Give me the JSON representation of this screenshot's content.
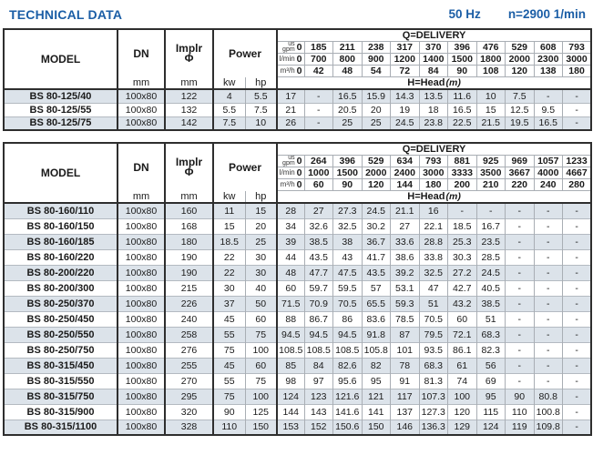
{
  "page": {
    "title": "TECHNICAL DATA",
    "frequency": "50 Hz",
    "speed": "n=2900 1/min"
  },
  "header_labels": {
    "model": "MODEL",
    "dn": "DN",
    "implr_line1": "Implr",
    "implr_line2": "Φ",
    "power": "Power",
    "mm": "mm",
    "kw": "kw",
    "hp": "hp",
    "q_delivery": "Q=DELIVERY",
    "us_gpm_line1": "us",
    "us_gpm_line2": "gpm",
    "l_min": "l/min",
    "m3_h": "m³/h",
    "zero": "0",
    "h_head": "H=Head",
    "h_head_unit": "(m)"
  },
  "tables": [
    {
      "flows": {
        "us_gpm": [
          "185",
          "211",
          "238",
          "317",
          "370",
          "396",
          "476",
          "529",
          "608",
          "793"
        ],
        "l_min": [
          "700",
          "800",
          "900",
          "1200",
          "1400",
          "1500",
          "1800",
          "2000",
          "2300",
          "3000"
        ],
        "m3_h": [
          "42",
          "48",
          "54",
          "72",
          "84",
          "90",
          "108",
          "120",
          "138",
          "180"
        ]
      },
      "rows": [
        {
          "model": "BS 80-125/40",
          "dn": "100x80",
          "implr": "122",
          "kw": "4",
          "hp": "5.5",
          "head": [
            "17",
            "-",
            "16.5",
            "15.9",
            "14.3",
            "13.5",
            "11.6",
            "10",
            "7.5",
            "-",
            "-"
          ]
        },
        {
          "model": "BS 80-125/55",
          "dn": "100x80",
          "implr": "132",
          "kw": "5.5",
          "hp": "7.5",
          "head": [
            "21",
            "-",
            "20.5",
            "20",
            "19",
            "18",
            "16.5",
            "15",
            "12.5",
            "9.5",
            "-"
          ]
        },
        {
          "model": "BS 80-125/75",
          "dn": "100x80",
          "implr": "142",
          "kw": "7.5",
          "hp": "10",
          "head": [
            "26",
            "-",
            "25",
            "25",
            "24.5",
            "23.8",
            "22.5",
            "21.5",
            "19.5",
            "16.5",
            "-"
          ]
        }
      ]
    },
    {
      "flows": {
        "us_gpm": [
          "264",
          "396",
          "529",
          "634",
          "793",
          "881",
          "925",
          "969",
          "1057",
          "1233"
        ],
        "l_min": [
          "1000",
          "1500",
          "2000",
          "2400",
          "3000",
          "3333",
          "3500",
          "3667",
          "4000",
          "4667"
        ],
        "m3_h": [
          "60",
          "90",
          "120",
          "144",
          "180",
          "200",
          "210",
          "220",
          "240",
          "280"
        ]
      },
      "rows": [
        {
          "model": "BS 80-160/110",
          "dn": "100x80",
          "implr": "160",
          "kw": "11",
          "hp": "15",
          "head": [
            "28",
            "27",
            "27.3",
            "24.5",
            "21.1",
            "16",
            "-",
            "-",
            "-",
            "-",
            "-"
          ]
        },
        {
          "model": "BS 80-160/150",
          "dn": "100x80",
          "implr": "168",
          "kw": "15",
          "hp": "20",
          "head": [
            "34",
            "32.6",
            "32.5",
            "30.2",
            "27",
            "22.1",
            "18.5",
            "16.7",
            "-",
            "-",
            "-"
          ]
        },
        {
          "model": "BS 80-160/185",
          "dn": "100x80",
          "implr": "180",
          "kw": "18.5",
          "hp": "25",
          "head": [
            "39",
            "38.5",
            "38",
            "36.7",
            "33.6",
            "28.8",
            "25.3",
            "23.5",
            "-",
            "-",
            "-"
          ]
        },
        {
          "model": "BS 80-160/220",
          "dn": "100x80",
          "implr": "190",
          "kw": "22",
          "hp": "30",
          "head": [
            "44",
            "43.5",
            "43",
            "41.7",
            "38.6",
            "33.8",
            "30.3",
            "28.5",
            "-",
            "-",
            "-"
          ]
        },
        {
          "model": "BS 80-200/220",
          "dn": "100x80",
          "implr": "190",
          "kw": "22",
          "hp": "30",
          "head": [
            "48",
            "47.7",
            "47.5",
            "43.5",
            "39.2",
            "32.5",
            "27.2",
            "24.5",
            "-",
            "-",
            "-"
          ]
        },
        {
          "model": "BS 80-200/300",
          "dn": "100x80",
          "implr": "215",
          "kw": "30",
          "hp": "40",
          "head": [
            "60",
            "59.7",
            "59.5",
            "57",
            "53.1",
            "47",
            "42.7",
            "40.5",
            "-",
            "-",
            "-"
          ]
        },
        {
          "model": "BS 80-250/370",
          "dn": "100x80",
          "implr": "226",
          "kw": "37",
          "hp": "50",
          "head": [
            "71.5",
            "70.9",
            "70.5",
            "65.5",
            "59.3",
            "51",
            "43.2",
            "38.5",
            "-",
            "-",
            "-"
          ]
        },
        {
          "model": "BS 80-250/450",
          "dn": "100x80",
          "implr": "240",
          "kw": "45",
          "hp": "60",
          "head": [
            "88",
            "86.7",
            "86",
            "83.6",
            "78.5",
            "70.5",
            "60",
            "51",
            "-",
            "-",
            "-"
          ]
        },
        {
          "model": "BS 80-250/550",
          "dn": "100x80",
          "implr": "258",
          "kw": "55",
          "hp": "75",
          "head": [
            "94.5",
            "94.5",
            "94.5",
            "91.8",
            "87",
            "79.5",
            "72.1",
            "68.3",
            "-",
            "-",
            "-"
          ]
        },
        {
          "model": "BS 80-250/750",
          "dn": "100x80",
          "implr": "276",
          "kw": "75",
          "hp": "100",
          "head": [
            "108.5",
            "108.5",
            "108.5",
            "105.8",
            "101",
            "93.5",
            "86.1",
            "82.3",
            "-",
            "-",
            "-"
          ]
        },
        {
          "model": "BS 80-315/450",
          "dn": "100x80",
          "implr": "255",
          "kw": "45",
          "hp": "60",
          "head": [
            "85",
            "84",
            "82.6",
            "82",
            "78",
            "68.3",
            "61",
            "56",
            "-",
            "-",
            "-"
          ]
        },
        {
          "model": "BS 80-315/550",
          "dn": "100x80",
          "implr": "270",
          "kw": "55",
          "hp": "75",
          "head": [
            "98",
            "97",
            "95.6",
            "95",
            "91",
            "81.3",
            "74",
            "69",
            "-",
            "-",
            "-"
          ]
        },
        {
          "model": "BS 80-315/750",
          "dn": "100x80",
          "implr": "295",
          "kw": "75",
          "hp": "100",
          "head": [
            "124",
            "123",
            "121.6",
            "121",
            "117",
            "107.3",
            "100",
            "95",
            "90",
            "80.8",
            "-"
          ]
        },
        {
          "model": "BS 80-315/900",
          "dn": "100x80",
          "implr": "320",
          "kw": "90",
          "hp": "125",
          "head": [
            "144",
            "143",
            "141.6",
            "141",
            "137",
            "127.3",
            "120",
            "115",
            "110",
            "100.8",
            "-"
          ]
        },
        {
          "model": "BS 80-315/1100",
          "dn": "100x80",
          "implr": "328",
          "kw": "110",
          "hp": "150",
          "head": [
            "153",
            "152",
            "150.6",
            "150",
            "146",
            "136.3",
            "129",
            "124",
            "119",
            "109.8",
            "-"
          ]
        }
      ]
    }
  ],
  "colors": {
    "accent_blue": "#1b5ea6",
    "row_stripe": "#dce3ea",
    "border_dark": "#2e2e2e",
    "border_light": "#a9aeb4"
  }
}
